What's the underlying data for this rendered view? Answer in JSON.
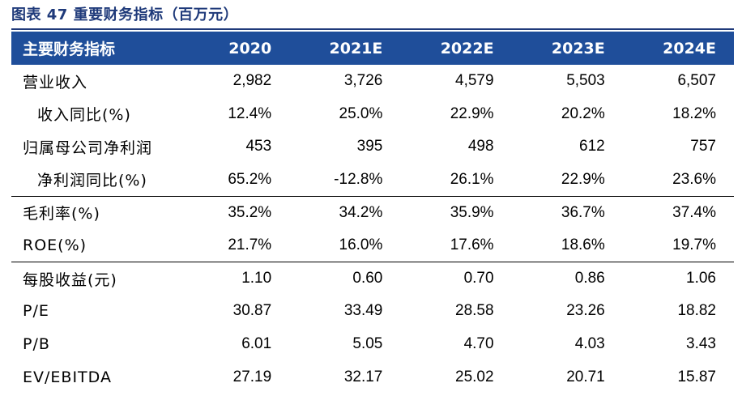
{
  "caption": "图表 47 重要财务指标（百万元）",
  "table": {
    "header": [
      "主要财务指标",
      "2020",
      "2021E",
      "2022E",
      "2023E",
      "2024E"
    ],
    "rows": [
      {
        "label": "营业收入",
        "indent": false,
        "values": [
          "2,982",
          "3,726",
          "4,579",
          "5,503",
          "6,507"
        ]
      },
      {
        "label": "收入同比(%)",
        "indent": true,
        "values": [
          "12.4%",
          "25.0%",
          "22.9%",
          "20.2%",
          "18.2%"
        ]
      },
      {
        "label": "归属母公司净利润",
        "indent": false,
        "values": [
          "453",
          "395",
          "498",
          "612",
          "757"
        ]
      },
      {
        "label": "净利润同比(%)",
        "indent": true,
        "values": [
          "65.2%",
          "-12.8%",
          "26.1%",
          "22.9%",
          "23.6%"
        ]
      },
      {
        "label": "毛利率(%)",
        "indent": false,
        "values": [
          "35.2%",
          "34.2%",
          "35.9%",
          "36.7%",
          "37.4%"
        ]
      },
      {
        "label": "ROE(%)",
        "indent": false,
        "values": [
          "21.7%",
          "16.0%",
          "17.6%",
          "18.6%",
          "19.7%"
        ]
      },
      {
        "label": "每股收益(元)",
        "indent": false,
        "values": [
          "1.10",
          "0.60",
          "0.70",
          "0.86",
          "1.06"
        ]
      },
      {
        "label": "P/E",
        "indent": false,
        "values": [
          "30.87",
          "33.49",
          "28.58",
          "23.26",
          "18.82"
        ]
      },
      {
        "label": "P/B",
        "indent": false,
        "values": [
          "6.01",
          "5.05",
          "4.70",
          "4.03",
          "3.43"
        ]
      },
      {
        "label": "EV/EBITDA",
        "indent": false,
        "values": [
          "27.19",
          "32.17",
          "25.02",
          "20.71",
          "15.87"
        ]
      }
    ]
  },
  "colors": {
    "header_bg": "#1F4E9A",
    "caption": "#1F3A7A"
  }
}
